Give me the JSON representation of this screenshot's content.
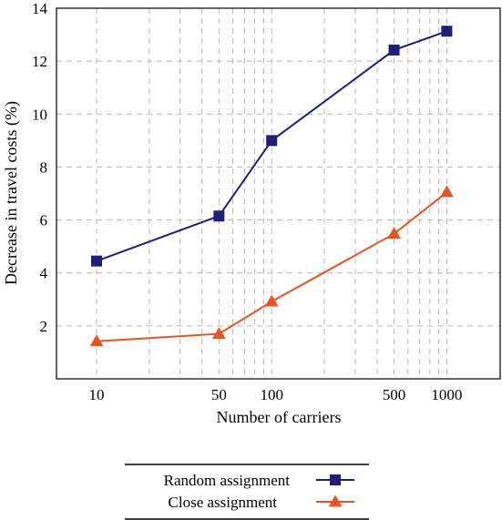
{
  "chart_data": {
    "type": "line",
    "x_scale": "log",
    "x": [
      10,
      50,
      100,
      500,
      1000
    ],
    "xticks": [
      "10",
      "50",
      "100",
      "500",
      "1000"
    ],
    "xlabel": "Number of carriers",
    "ylabel": "Decrease in travel costs (%)",
    "ylim": [
      0,
      14
    ],
    "yticks": [
      "2",
      "4",
      "6",
      "8",
      "10",
      "12",
      "14"
    ],
    "grid": true,
    "legend_position": "bottom",
    "series": [
      {
        "name": "Random assignment",
        "values": [
          4.45,
          6.15,
          9.0,
          12.42,
          13.13
        ],
        "color": "#1f1f7a",
        "marker": "square"
      },
      {
        "name": "Close assignment",
        "values": [
          1.42,
          1.7,
          2.92,
          5.48,
          7.05
        ],
        "color": "#e8541e",
        "marker": "triangle"
      }
    ]
  }
}
